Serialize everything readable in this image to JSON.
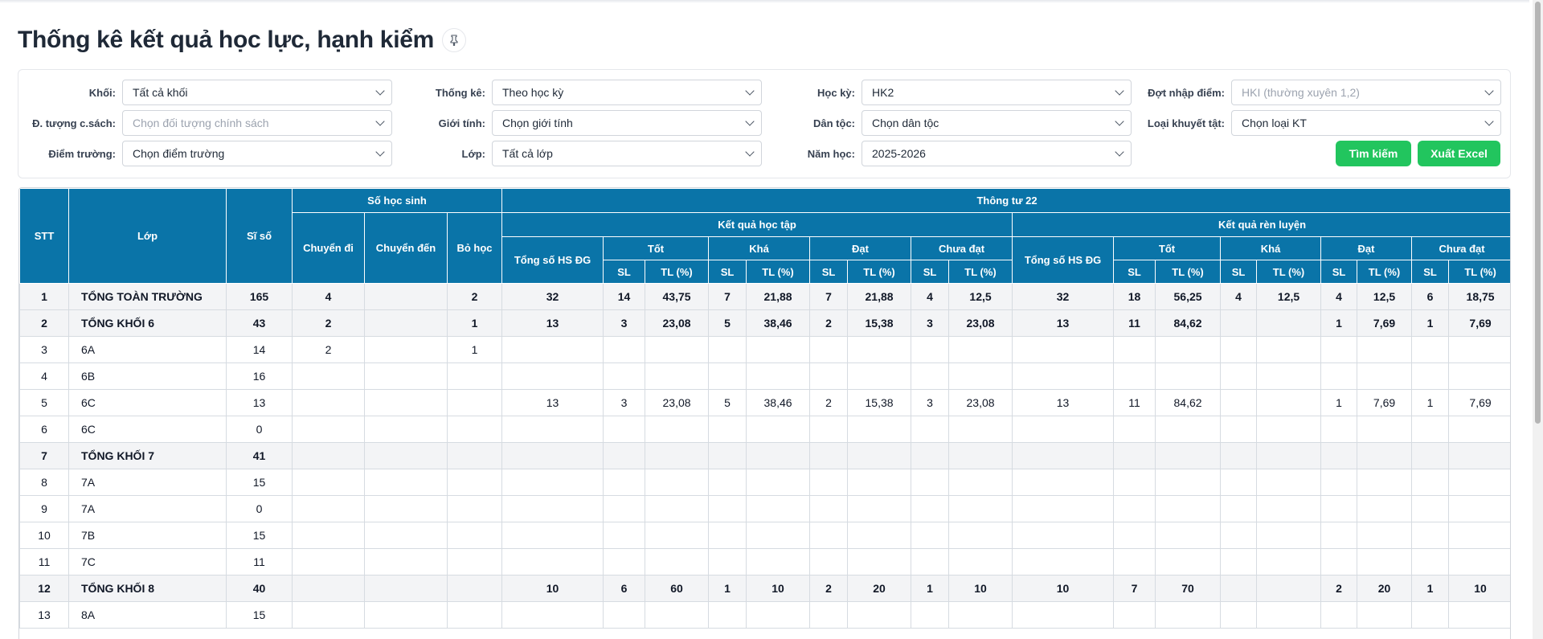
{
  "page": {
    "title": "Thống kê kết quả học lực, hạnh kiểm",
    "pin_icon": "pin-icon"
  },
  "filters": {
    "khoi": {
      "label": "Khối:",
      "value": "Tất cả khối"
    },
    "doi_tuong": {
      "label": "Đ. tượng c.sách:",
      "placeholder": "Chọn đối tượng chính sách"
    },
    "diem_truong": {
      "label": "Điểm trường:",
      "value": "Chọn điểm trường"
    },
    "thong_ke": {
      "label": "Thống kê:",
      "value": "Theo học kỳ"
    },
    "gioi_tinh": {
      "label": "Giới tính:",
      "value": "Chọn giới tính"
    },
    "lop": {
      "label": "Lớp:",
      "value": "Tất cả lớp"
    },
    "hoc_ky": {
      "label": "Học kỳ:",
      "value": "HK2"
    },
    "dan_toc": {
      "label": "Dân tộc:",
      "value": "Chọn dân tộc"
    },
    "nam_hoc": {
      "label": "Năm học:",
      "value": "2025-2026"
    },
    "dot_nhap_diem": {
      "label": "Đợt nhập điểm:",
      "placeholder": "HKI (thường xuyên 1,2)"
    },
    "loai_khuyet_tat": {
      "label": "Loại khuyết tật:",
      "value": "Chọn loại KT"
    }
  },
  "buttons": {
    "search": "Tìm kiếm",
    "export": "Xuất Excel"
  },
  "colors": {
    "header_bg": "#0a74a8",
    "button_green": "#22c55e"
  },
  "table": {
    "headers": {
      "stt": "STT",
      "lop": "Lớp",
      "si_so": "Sĩ số",
      "so_hoc_sinh": "Số học sinh",
      "chuyen_di": "Chuyển đi",
      "chuyen_den": "Chuyển đến",
      "bo_hoc": "Bỏ học",
      "thong_tu": "Thông tư 22",
      "ket_qua_hoc_tap": "Kết quả học tập",
      "ket_qua_ren_luyen": "Kết quả rèn luyện",
      "tong_so": "Tổng số HS ĐG",
      "tot": "Tốt",
      "kha": "Khá",
      "dat": "Đạt",
      "chua_dat": "Chưa đạt",
      "sl": "SL",
      "tl": "TL (%)"
    },
    "rows": [
      {
        "total": true,
        "cells": [
          "1",
          "TỔNG TOÀN TRƯỜNG",
          "165",
          "4",
          "",
          "2",
          "32",
          "14",
          "43,75",
          "7",
          "21,88",
          "7",
          "21,88",
          "4",
          "12,5",
          "32",
          "18",
          "56,25",
          "4",
          "12,5",
          "4",
          "12,5",
          "6",
          "18,75"
        ]
      },
      {
        "total": true,
        "cells": [
          "2",
          "TỔNG KHỐI 6",
          "43",
          "2",
          "",
          "1",
          "13",
          "3",
          "23,08",
          "5",
          "38,46",
          "2",
          "15,38",
          "3",
          "23,08",
          "13",
          "11",
          "84,62",
          "",
          "",
          "1",
          "7,69",
          "1",
          "7,69"
        ]
      },
      {
        "total": false,
        "cells": [
          "3",
          "6A",
          "14",
          "2",
          "",
          "1",
          "",
          "",
          "",
          "",
          "",
          "",
          "",
          "",
          "",
          "",
          "",
          "",
          "",
          "",
          "",
          "",
          "",
          ""
        ]
      },
      {
        "total": false,
        "cells": [
          "4",
          "6B",
          "16",
          "",
          "",
          "",
          "",
          "",
          "",
          "",
          "",
          "",
          "",
          "",
          "",
          "",
          "",
          "",
          "",
          "",
          "",
          "",
          "",
          ""
        ]
      },
      {
        "total": false,
        "cells": [
          "5",
          "6C",
          "13",
          "",
          "",
          "",
          "13",
          "3",
          "23,08",
          "5",
          "38,46",
          "2",
          "15,38",
          "3",
          "23,08",
          "13",
          "11",
          "84,62",
          "",
          "",
          "1",
          "7,69",
          "1",
          "7,69"
        ]
      },
      {
        "total": false,
        "cells": [
          "6",
          "6C",
          "0",
          "",
          "",
          "",
          "",
          "",
          "",
          "",
          "",
          "",
          "",
          "",
          "",
          "",
          "",
          "",
          "",
          "",
          "",
          "",
          "",
          ""
        ]
      },
      {
        "total": true,
        "cells": [
          "7",
          "TỔNG KHỐI 7",
          "41",
          "",
          "",
          "",
          "",
          "",
          "",
          "",
          "",
          "",
          "",
          "",
          "",
          "",
          "",
          "",
          "",
          "",
          "",
          "",
          "",
          ""
        ]
      },
      {
        "total": false,
        "cells": [
          "8",
          "7A",
          "15",
          "",
          "",
          "",
          "",
          "",
          "",
          "",
          "",
          "",
          "",
          "",
          "",
          "",
          "",
          "",
          "",
          "",
          "",
          "",
          "",
          ""
        ]
      },
      {
        "total": false,
        "cells": [
          "9",
          "7A",
          "0",
          "",
          "",
          "",
          "",
          "",
          "",
          "",
          "",
          "",
          "",
          "",
          "",
          "",
          "",
          "",
          "",
          "",
          "",
          "",
          "",
          ""
        ]
      },
      {
        "total": false,
        "cells": [
          "10",
          "7B",
          "15",
          "",
          "",
          "",
          "",
          "",
          "",
          "",
          "",
          "",
          "",
          "",
          "",
          "",
          "",
          "",
          "",
          "",
          "",
          "",
          "",
          ""
        ]
      },
      {
        "total": false,
        "cells": [
          "11",
          "7C",
          "11",
          "",
          "",
          "",
          "",
          "",
          "",
          "",
          "",
          "",
          "",
          "",
          "",
          "",
          "",
          "",
          "",
          "",
          "",
          "",
          "",
          ""
        ]
      },
      {
        "total": true,
        "cells": [
          "12",
          "TỔNG KHỐI 8",
          "40",
          "",
          "",
          "",
          "10",
          "6",
          "60",
          "1",
          "10",
          "2",
          "20",
          "1",
          "10",
          "10",
          "7",
          "70",
          "",
          "",
          "2",
          "20",
          "1",
          "10"
        ]
      },
      {
        "total": false,
        "cells": [
          "13",
          "8A",
          "15",
          "",
          "",
          "",
          "",
          "",
          "",
          "",
          "",
          "",
          "",
          "",
          "",
          "",
          "",
          "",
          "",
          "",
          "",
          "",
          "",
          ""
        ]
      }
    ]
  }
}
